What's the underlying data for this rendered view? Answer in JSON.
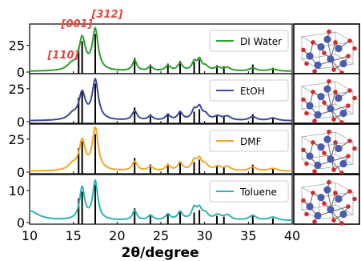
{
  "chart_data": {
    "type": "line",
    "xlabel": "2θ/degree",
    "ylabel": "",
    "xlim": [
      10,
      40
    ],
    "xticks": [
      "10",
      "15",
      "20",
      "25",
      "30",
      "35",
      "40"
    ],
    "annotations": [
      "[001]",
      "[312]",
      "[110]"
    ],
    "reference_peaks": {
      "x": [
        15.6,
        16.0,
        17.5,
        22.0,
        23.8,
        25.8,
        27.2,
        28.8,
        29.4,
        31.4,
        32.2,
        35.5,
        37.8
      ],
      "heights_frac": [
        0.62,
        0.78,
        0.95,
        0.38,
        0.22,
        0.24,
        0.3,
        0.28,
        0.34,
        0.2,
        0.18,
        0.22,
        0.14
      ]
    },
    "panels": [
      {
        "name": "DI Water",
        "color": "#2ca02c",
        "ylim": [
          0,
          42
        ],
        "yticks": [
          "25",
          "0"
        ],
        "peaks": [
          [
            16.0,
            30,
            0.45
          ],
          [
            17.5,
            38,
            0.4
          ],
          [
            14.8,
            5,
            0.6
          ],
          [
            22.0,
            10,
            0.3
          ],
          [
            23.8,
            4,
            0.35
          ],
          [
            25.8,
            5,
            0.35
          ],
          [
            27.2,
            7,
            0.35
          ],
          [
            28.8,
            8,
            0.3
          ],
          [
            29.4,
            10,
            0.3
          ],
          [
            30.1,
            4,
            0.4
          ],
          [
            31.5,
            3,
            0.5
          ],
          [
            32.6,
            3,
            0.5
          ],
          [
            35.5,
            3,
            0.5
          ],
          [
            37.8,
            2,
            0.6
          ]
        ]
      },
      {
        "name": "EtOH",
        "color": "#3a4a9a",
        "ylim": [
          0,
          34
        ],
        "yticks": [
          "25",
          "0"
        ],
        "peaks": [
          [
            16.0,
            20,
            0.45
          ],
          [
            17.5,
            30,
            0.42
          ],
          [
            14.9,
            4,
            0.6
          ],
          [
            22.0,
            7,
            0.35
          ],
          [
            23.8,
            3,
            0.4
          ],
          [
            25.8,
            4,
            0.35
          ],
          [
            27.2,
            6,
            0.35
          ],
          [
            28.8,
            7,
            0.35
          ],
          [
            29.4,
            9,
            0.35
          ],
          [
            30.1,
            4,
            0.4
          ],
          [
            31.5,
            3,
            0.5
          ],
          [
            32.6,
            3,
            0.5
          ],
          [
            35.5,
            3,
            0.5
          ],
          [
            37.8,
            2,
            0.6
          ]
        ]
      },
      {
        "name": "DMF",
        "color": "#f5a623",
        "ylim": [
          0,
          34
        ],
        "yticks": [
          "25",
          "0"
        ],
        "peaks": [
          [
            16.0,
            22,
            0.42
          ],
          [
            17.5,
            32,
            0.4
          ],
          [
            14.9,
            4,
            0.6
          ],
          [
            22.0,
            7,
            0.35
          ],
          [
            23.8,
            3,
            0.4
          ],
          [
            25.8,
            4,
            0.35
          ],
          [
            27.2,
            6,
            0.35
          ],
          [
            28.8,
            7,
            0.35
          ],
          [
            29.4,
            8,
            0.35
          ],
          [
            30.1,
            4,
            0.4
          ],
          [
            31.5,
            3,
            0.5
          ],
          [
            32.6,
            3,
            0.5
          ],
          [
            35.5,
            3,
            0.5
          ],
          [
            37.8,
            2,
            0.6
          ]
        ]
      },
      {
        "name": "Toluene",
        "color": "#2ab5b5",
        "ylim": [
          0,
          14
        ],
        "yticks": [
          "10",
          "0"
        ],
        "peaks": [
          [
            10.0,
            3,
            1.2
          ],
          [
            16.0,
            10,
            0.35
          ],
          [
            17.5,
            12,
            0.35
          ],
          [
            22.0,
            3,
            0.3
          ],
          [
            23.8,
            1.5,
            0.35
          ],
          [
            25.8,
            1.8,
            0.35
          ],
          [
            27.2,
            2.5,
            0.35
          ],
          [
            28.8,
            3.5,
            0.35
          ],
          [
            29.4,
            3.2,
            0.35
          ],
          [
            30.1,
            1.8,
            0.4
          ],
          [
            31.5,
            1.5,
            0.5
          ],
          [
            32.6,
            1.5,
            0.5
          ],
          [
            35.5,
            1.5,
            0.5
          ],
          [
            37.8,
            1,
            0.6
          ]
        ]
      }
    ]
  }
}
